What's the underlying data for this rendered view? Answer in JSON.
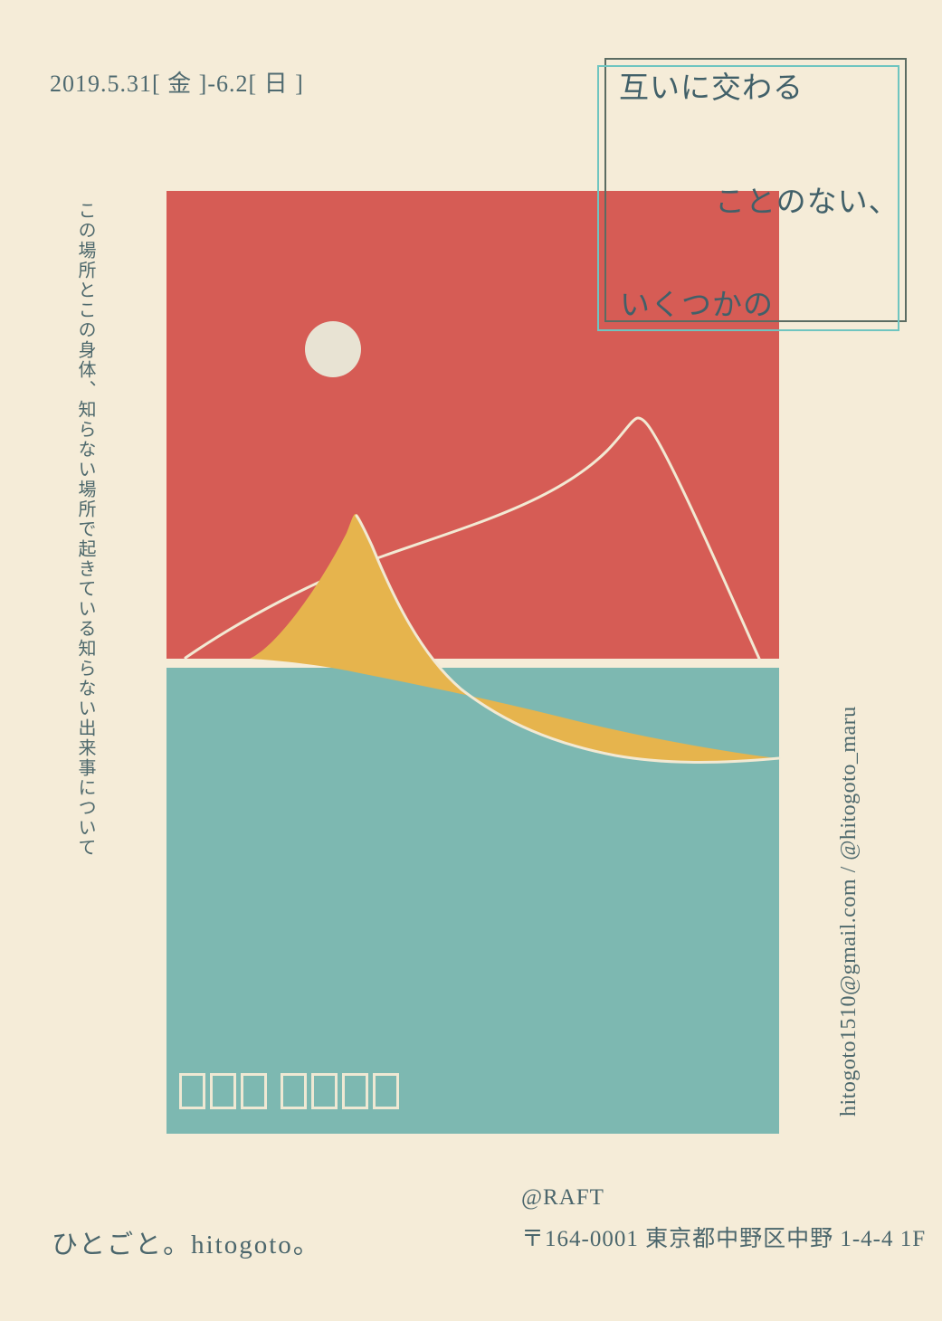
{
  "poster": {
    "date": "2019.5.31[ 金 ]-6.2[ 日 ]",
    "headline": {
      "line1": "互いに交わる",
      "line2": "ことのない、",
      "line3": "いくつかの"
    },
    "left_quote": "この場所とこの身体、知らない場所で起きている知らない出来事について",
    "contact_vertical": "hitogoto1510@gmail.com / @hitogoto_maru",
    "footer": {
      "title": "ひとごと。hitogoto。",
      "venue": "@RAFT",
      "address": "〒164-0001 東京都中野区中野 1-4-4 1F"
    }
  },
  "artwork": {
    "moon": "moon-circle",
    "mountain": "yellow-wave-mountain",
    "ridge_line": "cream-ridge-line",
    "glyph_boxes": {
      "groups": [
        3,
        4
      ],
      "note": "row of empty glyph placeholder boxes on teal square"
    }
  },
  "colors": {
    "background": "#f5ecd8",
    "red_square": "#d65c55",
    "teal_square": "#7db8b1",
    "yellow_shape": "#e6b44d",
    "cream_line": "#f2e9d3",
    "moon": "#e8e3d3",
    "ink": "#4b666c",
    "headline_ink": "#416069",
    "dark_frame": "#5b6c62",
    "teal_frame": "#6fc5c0"
  }
}
